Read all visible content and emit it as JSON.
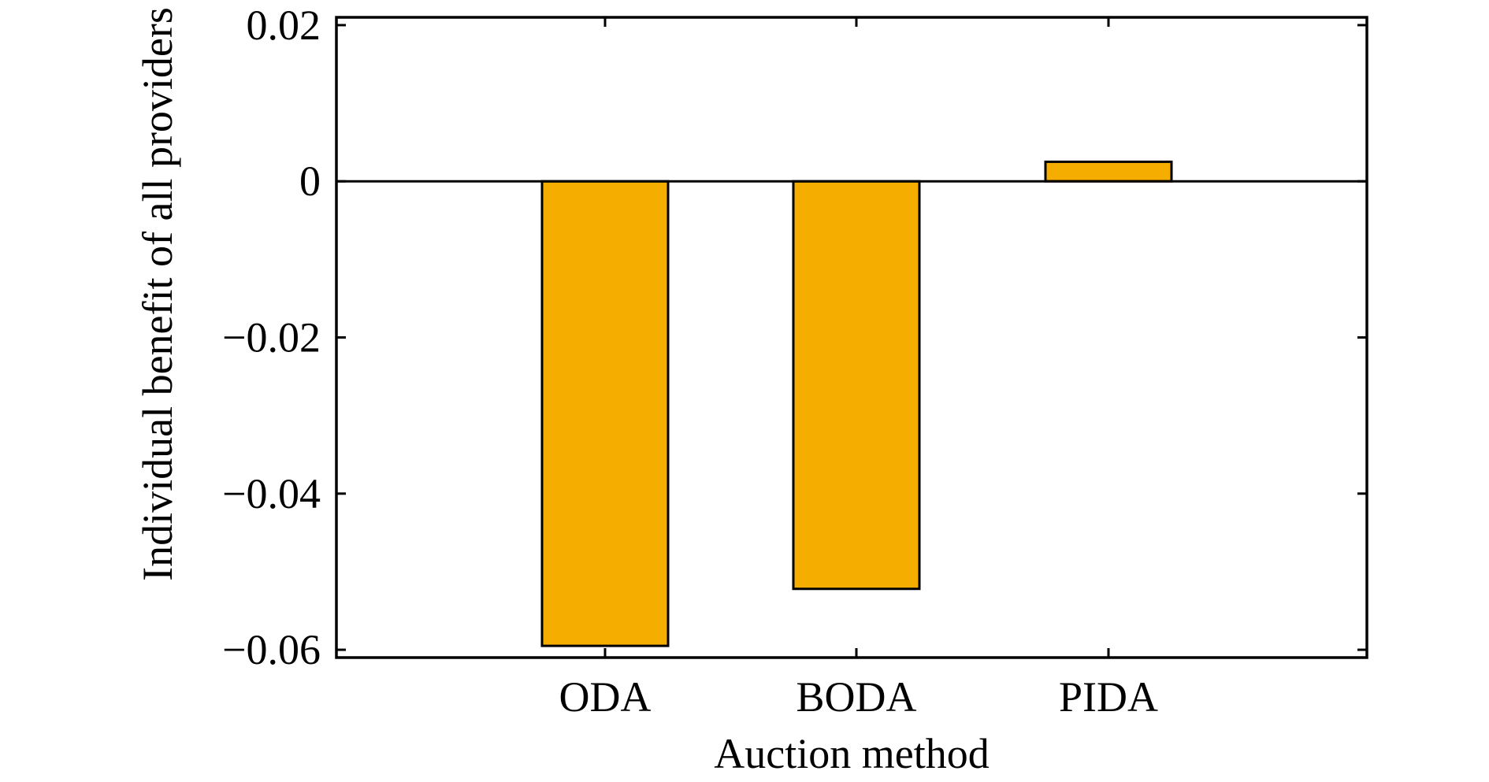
{
  "chart_data": {
    "type": "bar",
    "title": "",
    "xlabel": "Auction method",
    "ylabel": "Individual benefit of all providers",
    "categories": [
      "ODA",
      "BODA",
      "PIDA"
    ],
    "values": [
      -0.0595,
      -0.0522,
      0.0025
    ],
    "ylim": [
      -0.061,
      0.021
    ],
    "yticks": [
      0.02,
      0,
      -0.02,
      -0.04,
      -0.06
    ],
    "ytick_labels": [
      "0.02",
      "0",
      "−0.02",
      "−0.04",
      "−0.06"
    ],
    "zero_line": true,
    "grid": false,
    "legend": "none",
    "colors": {
      "bar_fill": "#F5AD00",
      "bar_edge": "#000000",
      "axis": "#000000"
    }
  }
}
